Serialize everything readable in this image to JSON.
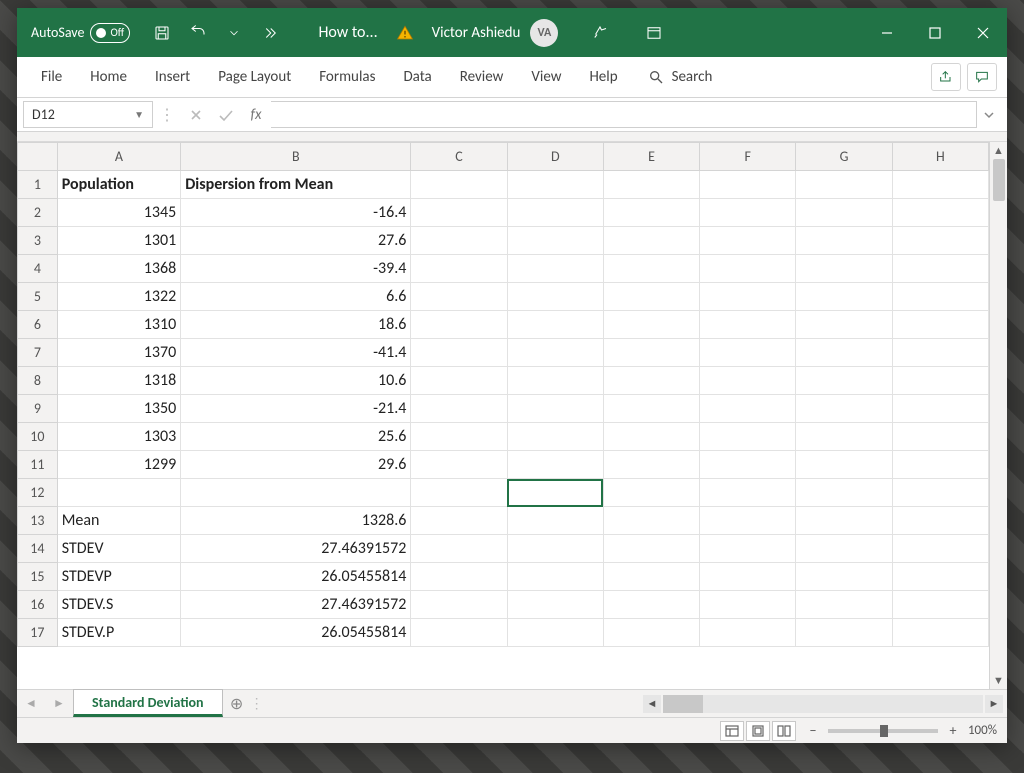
{
  "titlebar": {
    "autosave_label": "AutoSave",
    "autosave_state": "Off",
    "doc_title": "How to...",
    "user_name": "Victor Ashiedu",
    "user_initials": "VA"
  },
  "ribbon": {
    "tabs": [
      "File",
      "Home",
      "Insert",
      "Page Layout",
      "Formulas",
      "Data",
      "Review",
      "View",
      "Help"
    ],
    "search_label": "Search"
  },
  "formula_bar": {
    "name_box": "D12",
    "fx_label": "fx",
    "formula": ""
  },
  "grid": {
    "columns": [
      "A",
      "B",
      "C",
      "D",
      "E",
      "F",
      "G",
      "H"
    ],
    "col_widths": {
      "A": 118,
      "B": 220,
      "rest": 92
    },
    "selected_cell": "D12",
    "rows": [
      {
        "n": 1,
        "A": "Population",
        "B": "Dispersion from Mean",
        "A_align": "txt",
        "B_align": "txt",
        "bold": true
      },
      {
        "n": 2,
        "A": "1345",
        "B": "-16.4",
        "A_align": "num",
        "B_align": "num"
      },
      {
        "n": 3,
        "A": "1301",
        "B": "27.6",
        "A_align": "num",
        "B_align": "num"
      },
      {
        "n": 4,
        "A": "1368",
        "B": "-39.4",
        "A_align": "num",
        "B_align": "num"
      },
      {
        "n": 5,
        "A": "1322",
        "B": "6.6",
        "A_align": "num",
        "B_align": "num"
      },
      {
        "n": 6,
        "A": "1310",
        "B": "18.6",
        "A_align": "num",
        "B_align": "num"
      },
      {
        "n": 7,
        "A": "1370",
        "B": "-41.4",
        "A_align": "num",
        "B_align": "num"
      },
      {
        "n": 8,
        "A": "1318",
        "B": "10.6",
        "A_align": "num",
        "B_align": "num"
      },
      {
        "n": 9,
        "A": "1350",
        "B": "-21.4",
        "A_align": "num",
        "B_align": "num"
      },
      {
        "n": 10,
        "A": "1303",
        "B": "25.6",
        "A_align": "num",
        "B_align": "num"
      },
      {
        "n": 11,
        "A": "1299",
        "B": "29.6",
        "A_align": "num",
        "B_align": "num"
      },
      {
        "n": 12,
        "A": "",
        "B": "",
        "A_align": "txt",
        "B_align": "txt"
      },
      {
        "n": 13,
        "A": "Mean",
        "B": "1328.6",
        "A_align": "txt",
        "B_align": "num"
      },
      {
        "n": 14,
        "A": "STDEV",
        "B": "27.46391572",
        "A_align": "txt",
        "B_align": "num"
      },
      {
        "n": 15,
        "A": "STDEVP",
        "B": "26.05455814",
        "A_align": "txt",
        "B_align": "num"
      },
      {
        "n": 16,
        "A": "STDEV.S",
        "B": "27.46391572",
        "A_align": "txt",
        "B_align": "num"
      },
      {
        "n": 17,
        "A": "STDEV.P",
        "B": "26.05455814",
        "A_align": "txt",
        "B_align": "num"
      }
    ]
  },
  "sheet_tabs": {
    "active": "Standard Deviation"
  },
  "statusbar": {
    "zoom": "100%"
  },
  "colors": {
    "accent": "#217346",
    "grid_border": "#e2e2e2",
    "header_bg": "#f3f2f1"
  }
}
